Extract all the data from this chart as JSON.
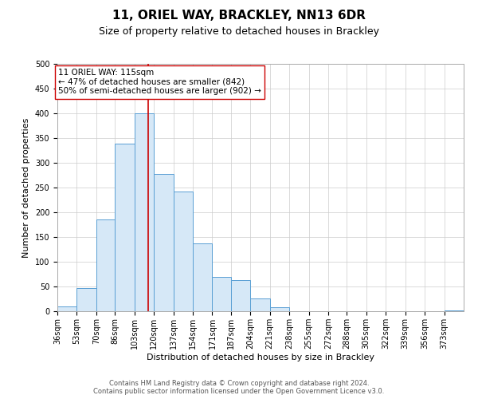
{
  "title": "11, ORIEL WAY, BRACKLEY, NN13 6DR",
  "subtitle": "Size of property relative to detached houses in Brackley",
  "xlabel": "Distribution of detached houses by size in Brackley",
  "ylabel": "Number of detached properties",
  "bin_labels": [
    "36sqm",
    "53sqm",
    "70sqm",
    "86sqm",
    "103sqm",
    "120sqm",
    "137sqm",
    "154sqm",
    "171sqm",
    "187sqm",
    "204sqm",
    "221sqm",
    "238sqm",
    "255sqm",
    "272sqm",
    "288sqm",
    "305sqm",
    "322sqm",
    "339sqm",
    "356sqm",
    "373sqm"
  ],
  "bin_edges": [
    36,
    53,
    70,
    86,
    103,
    120,
    137,
    154,
    171,
    187,
    204,
    221,
    238,
    255,
    272,
    288,
    305,
    322,
    339,
    356,
    373,
    390
  ],
  "counts": [
    10,
    47,
    185,
    338,
    400,
    277,
    242,
    137,
    70,
    63,
    26,
    8,
    0,
    0,
    0,
    0,
    0,
    0,
    0,
    0,
    2
  ],
  "bar_facecolor": "#d6e8f7",
  "bar_edgecolor": "#5a9fd4",
  "vline_x": 115,
  "vline_color": "#cc0000",
  "annotation_line1": "11 ORIEL WAY: 115sqm",
  "annotation_line2": "← 47% of detached houses are smaller (842)",
  "annotation_line3": "50% of semi-detached houses are larger (902) →",
  "ylim": [
    0,
    500
  ],
  "yticks": [
    0,
    50,
    100,
    150,
    200,
    250,
    300,
    350,
    400,
    450,
    500
  ],
  "grid_color": "#cccccc",
  "background_color": "#ffffff",
  "footer_line1": "Contains HM Land Registry data © Crown copyright and database right 2024.",
  "footer_line2": "Contains public sector information licensed under the Open Government Licence v3.0.",
  "title_fontsize": 11,
  "subtitle_fontsize": 9,
  "label_fontsize": 8,
  "tick_fontsize": 7,
  "footer_fontsize": 6
}
